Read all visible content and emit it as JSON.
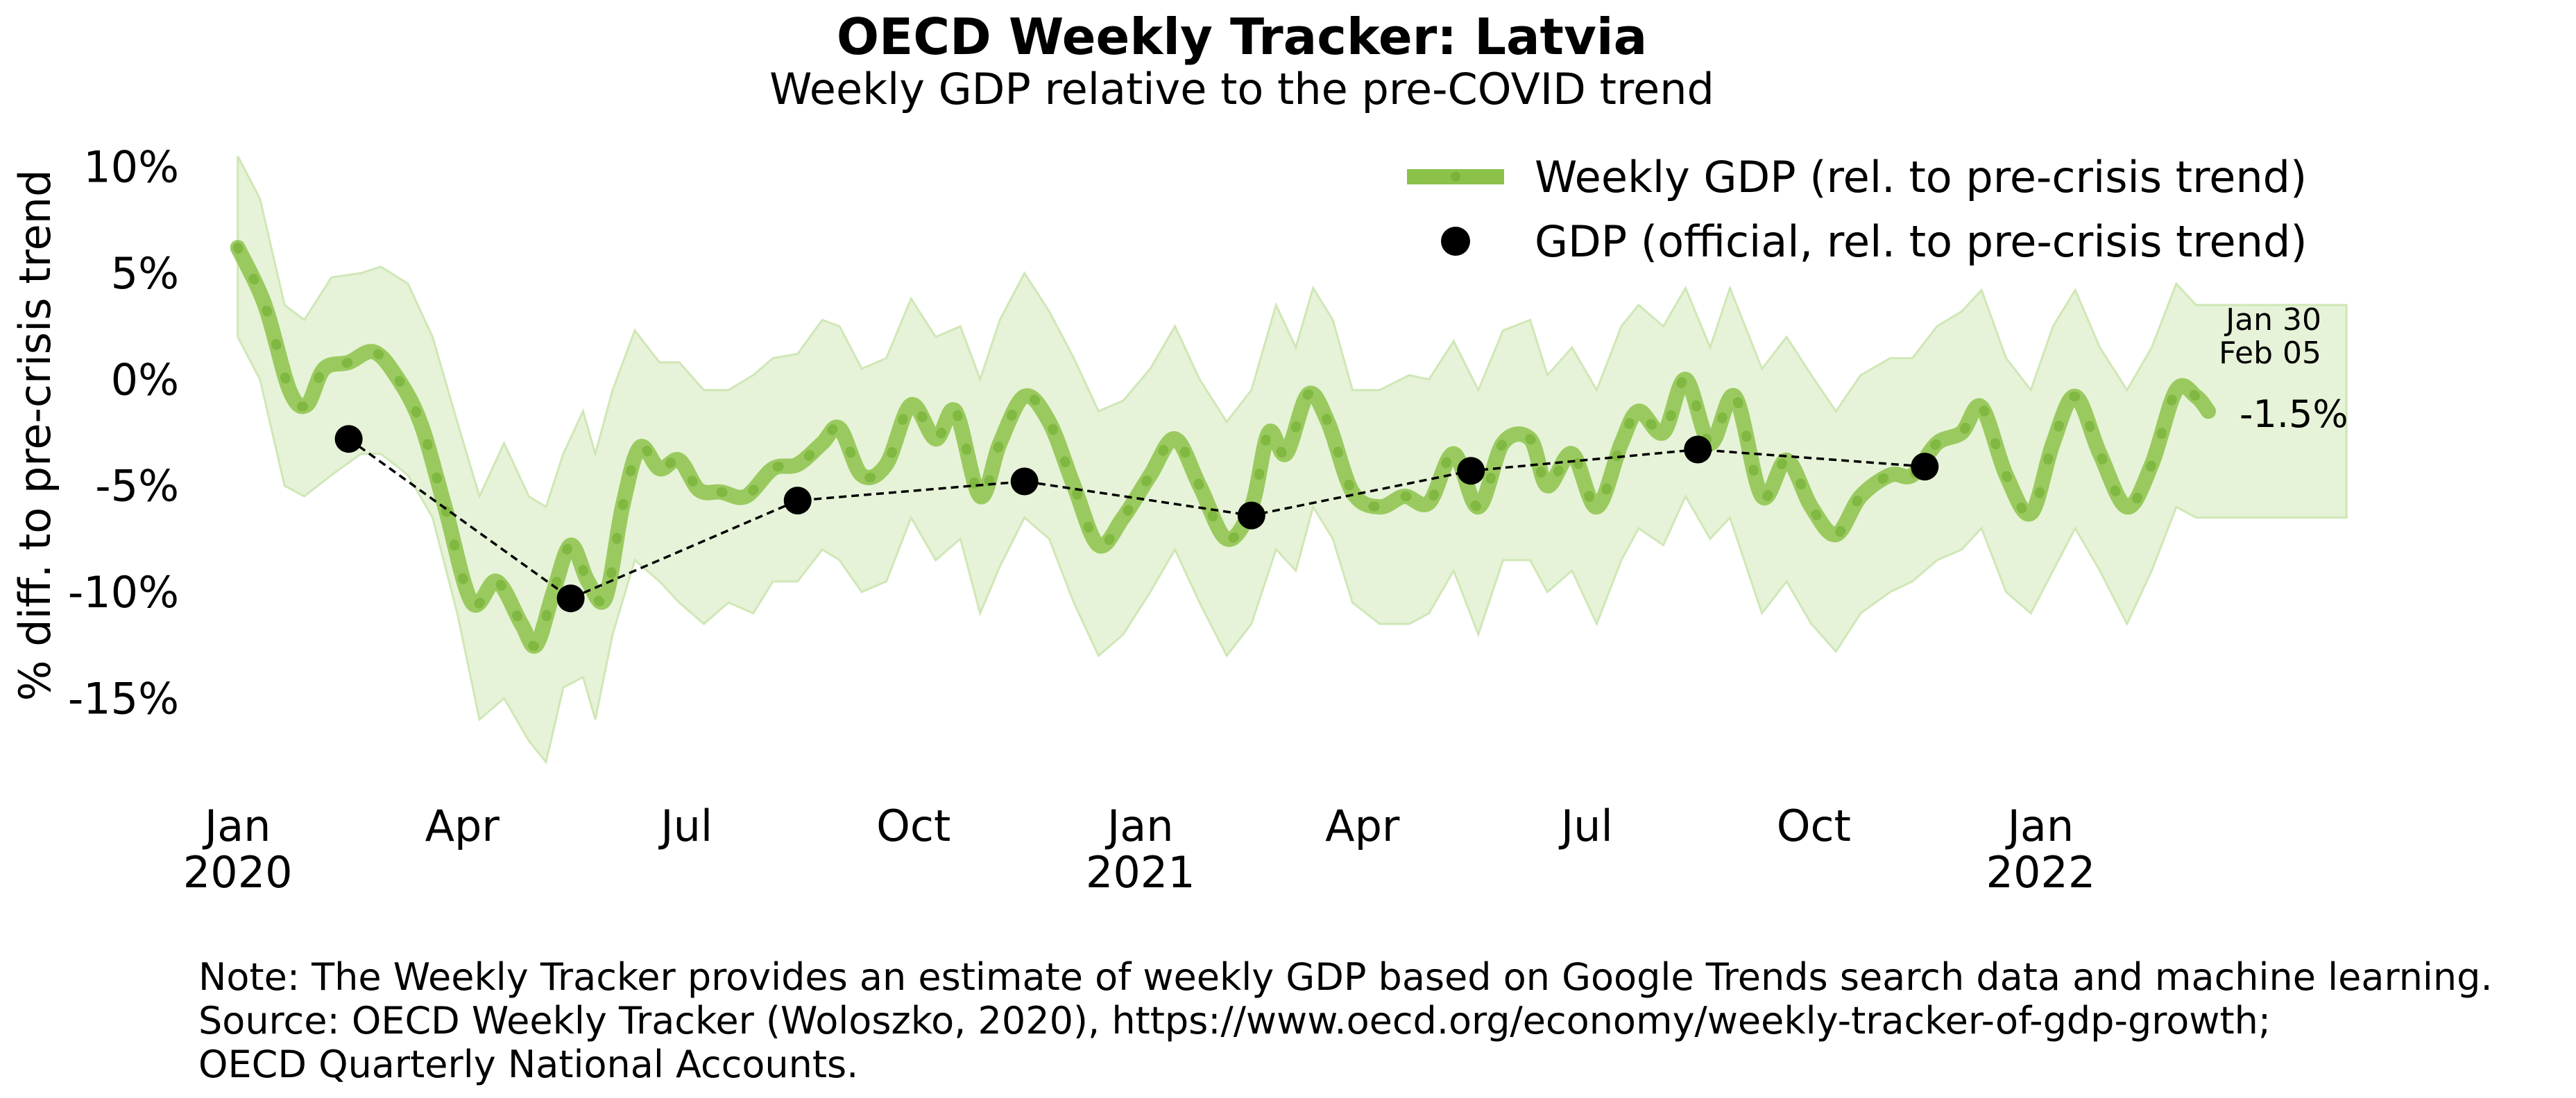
{
  "chart_data": {
    "type": "line",
    "title": "OECD Weekly Tracker: Latvia",
    "subtitle": "Weekly GDP relative to the pre-COVID trend",
    "ylabel": "% diff. to pre-crisis trend",
    "xlabel": "",
    "ylim": [
      -19,
      11
    ],
    "xlim": [
      "2019-12-20",
      "2022-05-10"
    ],
    "y_ticks": [
      {
        "value": 10,
        "label": "10%"
      },
      {
        "value": 5,
        "label": "5%"
      },
      {
        "value": 0,
        "label": "0%"
      },
      {
        "value": -5,
        "label": "-5%"
      },
      {
        "value": -10,
        "label": "-10%"
      },
      {
        "value": -15,
        "label": "-15%"
      }
    ],
    "x_ticks": [
      {
        "date": "2020-01-01",
        "label": "Jan",
        "year": "2020"
      },
      {
        "date": "2020-04-01",
        "label": "Apr",
        "year": ""
      },
      {
        "date": "2020-07-01",
        "label": "Jul",
        "year": ""
      },
      {
        "date": "2020-10-01",
        "label": "Oct",
        "year": ""
      },
      {
        "date": "2021-01-01",
        "label": "Jan",
        "year": "2021"
      },
      {
        "date": "2021-04-01",
        "label": "Apr",
        "year": ""
      },
      {
        "date": "2021-07-01",
        "label": "Jul",
        "year": ""
      },
      {
        "date": "2021-10-01",
        "label": "Oct",
        "year": ""
      },
      {
        "date": "2022-01-01",
        "label": "Jan",
        "year": "2022"
      }
    ],
    "grid": false,
    "legend_position": "top-right",
    "colors": {
      "weekly": "#8cc24a",
      "band": "#e6f3d8",
      "band_edge": "#cfe7b6",
      "official": "#000000"
    },
    "series": [
      {
        "name": "Weekly GDP (rel. to pre-crisis trend)",
        "kind": "line",
        "points": [
          [
            "2020-01-01",
            6.2
          ],
          [
            "2020-01-12",
            3.5
          ],
          [
            "2020-01-22",
            -0.5
          ],
          [
            "2020-01-29",
            -1.2
          ],
          [
            "2020-02-05",
            0.5
          ],
          [
            "2020-02-15",
            0.8
          ],
          [
            "2020-02-25",
            1.3
          ],
          [
            "2020-03-05",
            0.2
          ],
          [
            "2020-03-15",
            -2.0
          ],
          [
            "2020-03-25",
            -6.0
          ],
          [
            "2020-04-05",
            -10.5
          ],
          [
            "2020-04-15",
            -9.5
          ],
          [
            "2020-04-25",
            -11.5
          ],
          [
            "2020-05-01",
            -12.5
          ],
          [
            "2020-05-08",
            -10.0
          ],
          [
            "2020-05-15",
            -7.8
          ],
          [
            "2020-05-22",
            -9.5
          ],
          [
            "2020-05-29",
            -10.3
          ],
          [
            "2020-06-05",
            -6.0
          ],
          [
            "2020-06-12",
            -3.2
          ],
          [
            "2020-06-20",
            -4.2
          ],
          [
            "2020-06-28",
            -3.8
          ],
          [
            "2020-07-06",
            -5.2
          ],
          [
            "2020-07-15",
            -5.3
          ],
          [
            "2020-07-25",
            -5.5
          ],
          [
            "2020-08-05",
            -4.2
          ],
          [
            "2020-08-15",
            -4.0
          ],
          [
            "2020-08-25",
            -3.0
          ],
          [
            "2020-09-01",
            -2.3
          ],
          [
            "2020-09-10",
            -4.5
          ],
          [
            "2020-09-20",
            -4.0
          ],
          [
            "2020-09-30",
            -1.2
          ],
          [
            "2020-10-10",
            -2.8
          ],
          [
            "2020-10-18",
            -1.5
          ],
          [
            "2020-10-28",
            -5.5
          ],
          [
            "2020-11-05",
            -3.0
          ],
          [
            "2020-11-15",
            -0.8
          ],
          [
            "2020-11-25",
            -2.0
          ],
          [
            "2020-12-05",
            -5.0
          ],
          [
            "2020-12-15",
            -7.8
          ],
          [
            "2020-12-25",
            -6.5
          ],
          [
            "2021-01-05",
            -4.5
          ],
          [
            "2021-01-15",
            -2.8
          ],
          [
            "2021-01-25",
            -5.0
          ],
          [
            "2021-02-05",
            -7.5
          ],
          [
            "2021-02-15",
            -6.0
          ],
          [
            "2021-02-22",
            -2.5
          ],
          [
            "2021-03-01",
            -3.5
          ],
          [
            "2021-03-10",
            -0.7
          ],
          [
            "2021-03-18",
            -2.0
          ],
          [
            "2021-03-28",
            -5.3
          ],
          [
            "2021-04-08",
            -6.0
          ],
          [
            "2021-04-18",
            -5.5
          ],
          [
            "2021-04-28",
            -5.8
          ],
          [
            "2021-05-08",
            -3.5
          ],
          [
            "2021-05-18",
            -6.0
          ],
          [
            "2021-05-28",
            -3.0
          ],
          [
            "2021-06-08",
            -2.8
          ],
          [
            "2021-06-15",
            -5.0
          ],
          [
            "2021-06-25",
            -3.5
          ],
          [
            "2021-07-05",
            -6.0
          ],
          [
            "2021-07-15",
            -3.0
          ],
          [
            "2021-07-22",
            -1.5
          ],
          [
            "2021-08-01",
            -2.5
          ],
          [
            "2021-08-10",
            0.0
          ],
          [
            "2021-08-20",
            -3.0
          ],
          [
            "2021-08-30",
            -0.8
          ],
          [
            "2021-09-10",
            -5.5
          ],
          [
            "2021-09-20",
            -3.8
          ],
          [
            "2021-09-30",
            -6.0
          ],
          [
            "2021-10-10",
            -7.3
          ],
          [
            "2021-10-20",
            -5.5
          ],
          [
            "2021-11-01",
            -4.5
          ],
          [
            "2021-11-10",
            -4.5
          ],
          [
            "2021-11-20",
            -3.0
          ],
          [
            "2021-11-30",
            -2.5
          ],
          [
            "2021-12-08",
            -1.3
          ],
          [
            "2021-12-18",
            -4.5
          ],
          [
            "2021-12-28",
            -6.3
          ],
          [
            "2022-01-06",
            -3.0
          ],
          [
            "2022-01-15",
            -0.8
          ],
          [
            "2022-01-25",
            -3.5
          ],
          [
            "2022-02-05",
            -6.0
          ],
          [
            "2022-02-15",
            -4.0
          ],
          [
            "2022-02-25",
            -0.5
          ],
          [
            "2022-03-05",
            -0.8
          ],
          [
            "2022-03-10",
            -1.5
          ]
        ]
      },
      {
        "name": "GDP (official, rel. to pre-crisis trend)",
        "kind": "points",
        "points": [
          [
            "2020-02-15",
            -2.8
          ],
          [
            "2020-05-15",
            -10.3
          ],
          [
            "2020-08-15",
            -5.7
          ],
          [
            "2020-11-15",
            -4.8
          ],
          [
            "2021-02-15",
            -6.4
          ],
          [
            "2021-05-15",
            -4.3
          ],
          [
            "2021-08-15",
            -3.3
          ],
          [
            "2021-11-15",
            -4.1
          ]
        ]
      }
    ],
    "band": {
      "upper": [
        [
          "2020-01-01",
          10.5
        ],
        [
          "2020-01-10",
          8.5
        ],
        [
          "2020-01-20",
          3.5
        ],
        [
          "2020-01-28",
          2.8
        ],
        [
          "2020-02-08",
          4.8
        ],
        [
          "2020-02-20",
          5.0
        ],
        [
          "2020-02-28",
          5.3
        ],
        [
          "2020-03-10",
          4.5
        ],
        [
          "2020-03-20",
          2.0
        ],
        [
          "2020-03-30",
          -2.0
        ],
        [
          "2020-04-08",
          -5.5
        ],
        [
          "2020-04-18",
          -3.0
        ],
        [
          "2020-04-28",
          -5.5
        ],
        [
          "2020-05-05",
          -6.0
        ],
        [
          "2020-05-12",
          -3.5
        ],
        [
          "2020-05-20",
          -1.5
        ],
        [
          "2020-05-25",
          -3.5
        ],
        [
          "2020-06-01",
          -0.5
        ],
        [
          "2020-06-10",
          2.3
        ],
        [
          "2020-06-20",
          0.8
        ],
        [
          "2020-06-28",
          0.8
        ],
        [
          "2020-07-08",
          -0.5
        ],
        [
          "2020-07-18",
          -0.5
        ],
        [
          "2020-07-28",
          0.2
        ],
        [
          "2020-08-05",
          1.0
        ],
        [
          "2020-08-15",
          1.2
        ],
        [
          "2020-08-25",
          2.8
        ],
        [
          "2020-09-01",
          2.5
        ],
        [
          "2020-09-10",
          0.5
        ],
        [
          "2020-09-20",
          1.0
        ],
        [
          "2020-09-30",
          3.8
        ],
        [
          "2020-10-10",
          2.0
        ],
        [
          "2020-10-20",
          2.5
        ],
        [
          "2020-10-28",
          0.0
        ],
        [
          "2020-11-05",
          2.8
        ],
        [
          "2020-11-15",
          5.0
        ],
        [
          "2020-11-25",
          3.2
        ],
        [
          "2020-12-05",
          1.0
        ],
        [
          "2020-12-15",
          -1.5
        ],
        [
          "2020-12-25",
          -1.0
        ],
        [
          "2021-01-05",
          0.5
        ],
        [
          "2021-01-15",
          2.5
        ],
        [
          "2021-01-25",
          0.0
        ],
        [
          "2021-02-05",
          -2.0
        ],
        [
          "2021-02-15",
          -0.5
        ],
        [
          "2021-02-25",
          3.5
        ],
        [
          "2021-03-05",
          1.5
        ],
        [
          "2021-03-12",
          4.3
        ],
        [
          "2021-03-20",
          2.8
        ],
        [
          "2021-03-28",
          -0.5
        ],
        [
          "2021-04-08",
          -0.5
        ],
        [
          "2021-04-20",
          0.2
        ],
        [
          "2021-04-28",
          0.0
        ],
        [
          "2021-05-08",
          1.8
        ],
        [
          "2021-05-18",
          -0.5
        ],
        [
          "2021-05-28",
          2.3
        ],
        [
          "2021-06-08",
          2.8
        ],
        [
          "2021-06-15",
          0.2
        ],
        [
          "2021-06-25",
          1.5
        ],
        [
          "2021-07-05",
          -0.5
        ],
        [
          "2021-07-15",
          2.5
        ],
        [
          "2021-07-22",
          3.5
        ],
        [
          "2021-08-01",
          2.5
        ],
        [
          "2021-08-10",
          4.3
        ],
        [
          "2021-08-20",
          1.5
        ],
        [
          "2021-08-28",
          4.3
        ],
        [
          "2021-09-10",
          0.5
        ],
        [
          "2021-09-20",
          2.0
        ],
        [
          "2021-09-30",
          0.2
        ],
        [
          "2021-10-10",
          -1.5
        ],
        [
          "2021-10-20",
          0.2
        ],
        [
          "2021-11-01",
          1.0
        ],
        [
          "2021-11-10",
          1.0
        ],
        [
          "2021-11-20",
          2.5
        ],
        [
          "2021-11-30",
          3.2
        ],
        [
          "2021-12-08",
          4.2
        ],
        [
          "2021-12-18",
          1.0
        ],
        [
          "2021-12-28",
          -0.5
        ],
        [
          "2022-01-06",
          2.5
        ],
        [
          "2022-01-15",
          4.2
        ],
        [
          "2022-01-25",
          1.5
        ],
        [
          "2022-02-05",
          -0.5
        ],
        [
          "2022-02-15",
          1.5
        ],
        [
          "2022-02-25",
          4.5
        ],
        [
          "2022-03-05",
          3.5
        ],
        [
          "2022-05-05",
          3.5
        ]
      ],
      "lower": [
        [
          "2022-05-05",
          -6.5
        ],
        [
          "2022-03-05",
          -6.5
        ],
        [
          "2022-02-25",
          -6.0
        ],
        [
          "2022-02-15",
          -9.0
        ],
        [
          "2022-02-05",
          -11.5
        ],
        [
          "2022-01-25",
          -9.0
        ],
        [
          "2022-01-15",
          -7.0
        ],
        [
          "2022-01-06",
          -9.0
        ],
        [
          "2021-12-28",
          -11.0
        ],
        [
          "2021-12-18",
          -10.0
        ],
        [
          "2021-12-08",
          -7.0
        ],
        [
          "2021-11-30",
          -8.0
        ],
        [
          "2021-11-20",
          -8.5
        ],
        [
          "2021-11-10",
          -9.5
        ],
        [
          "2021-11-01",
          -10.0
        ],
        [
          "2021-10-20",
          -11.0
        ],
        [
          "2021-10-10",
          -12.8
        ],
        [
          "2021-09-30",
          -11.5
        ],
        [
          "2021-09-20",
          -9.5
        ],
        [
          "2021-09-10",
          -11.0
        ],
        [
          "2021-08-28",
          -6.5
        ],
        [
          "2021-08-20",
          -7.5
        ],
        [
          "2021-08-10",
          -5.5
        ],
        [
          "2021-08-01",
          -7.8
        ],
        [
          "2021-07-22",
          -7.0
        ],
        [
          "2021-07-15",
          -8.5
        ],
        [
          "2021-07-05",
          -11.5
        ],
        [
          "2021-06-25",
          -9.0
        ],
        [
          "2021-06-15",
          -10.0
        ],
        [
          "2021-06-08",
          -8.5
        ],
        [
          "2021-05-28",
          -8.5
        ],
        [
          "2021-05-18",
          -12.0
        ],
        [
          "2021-05-08",
          -9.0
        ],
        [
          "2021-04-28",
          -11.0
        ],
        [
          "2021-04-20",
          -11.5
        ],
        [
          "2021-04-08",
          -11.5
        ],
        [
          "2021-03-28",
          -10.5
        ],
        [
          "2021-03-20",
          -7.5
        ],
        [
          "2021-03-12",
          -6.0
        ],
        [
          "2021-03-05",
          -9.0
        ],
        [
          "2021-02-25",
          -8.0
        ],
        [
          "2021-02-15",
          -11.5
        ],
        [
          "2021-02-05",
          -13.0
        ],
        [
          "2021-01-25",
          -10.5
        ],
        [
          "2021-01-15",
          -8.0
        ],
        [
          "2021-01-05",
          -10.0
        ],
        [
          "2020-12-25",
          -12.0
        ],
        [
          "2020-12-15",
          -13.0
        ],
        [
          "2020-12-05",
          -10.5
        ],
        [
          "2020-11-25",
          -7.5
        ],
        [
          "2020-11-15",
          -6.5
        ],
        [
          "2020-11-05",
          -8.8
        ],
        [
          "2020-10-28",
          -11.0
        ],
        [
          "2020-10-20",
          -7.5
        ],
        [
          "2020-10-10",
          -8.5
        ],
        [
          "2020-09-30",
          -6.5
        ],
        [
          "2020-09-20",
          -9.5
        ],
        [
          "2020-09-10",
          -10.0
        ],
        [
          "2020-09-01",
          -8.5
        ],
        [
          "2020-08-25",
          -8.0
        ],
        [
          "2020-08-15",
          -9.5
        ],
        [
          "2020-08-05",
          -9.5
        ],
        [
          "2020-07-28",
          -11.0
        ],
        [
          "2020-07-18",
          -10.5
        ],
        [
          "2020-07-08",
          -11.5
        ],
        [
          "2020-06-28",
          -10.5
        ],
        [
          "2020-06-20",
          -9.5
        ],
        [
          "2020-06-10",
          -8.5
        ],
        [
          "2020-06-01",
          -12.0
        ],
        [
          "2020-05-25",
          -16.0
        ],
        [
          "2020-05-20",
          -14.0
        ],
        [
          "2020-05-12",
          -14.5
        ],
        [
          "2020-05-05",
          -18.0
        ],
        [
          "2020-04-28",
          -17.0
        ],
        [
          "2020-04-18",
          -15.0
        ],
        [
          "2020-04-08",
          -16.0
        ],
        [
          "2020-03-30",
          -11.0
        ],
        [
          "2020-03-20",
          -6.5
        ],
        [
          "2020-03-10",
          -4.5
        ],
        [
          "2020-02-28",
          -3.5
        ],
        [
          "2020-02-20",
          -3.5
        ],
        [
          "2020-02-08",
          -4.5
        ],
        [
          "2020-01-28",
          -5.5
        ],
        [
          "2020-01-20",
          -5.0
        ],
        [
          "2020-01-10",
          0.0
        ],
        [
          "2020-01-01",
          2.0
        ]
      ]
    },
    "annotations": {
      "date_line1": "Jan 30",
      "date_line2": "Feb 05",
      "last_value": "-1.5%"
    },
    "note": {
      "line1": "Note: The Weekly Tracker provides an estimate of weekly GDP based on Google Trends search data and machine learning.",
      "line2": "Source: OECD Weekly Tracker (Woloszko, 2020), https://www.oecd.org/economy/weekly-tracker-of-gdp-growth;",
      "line3": "OECD Quarterly National Accounts."
    }
  }
}
